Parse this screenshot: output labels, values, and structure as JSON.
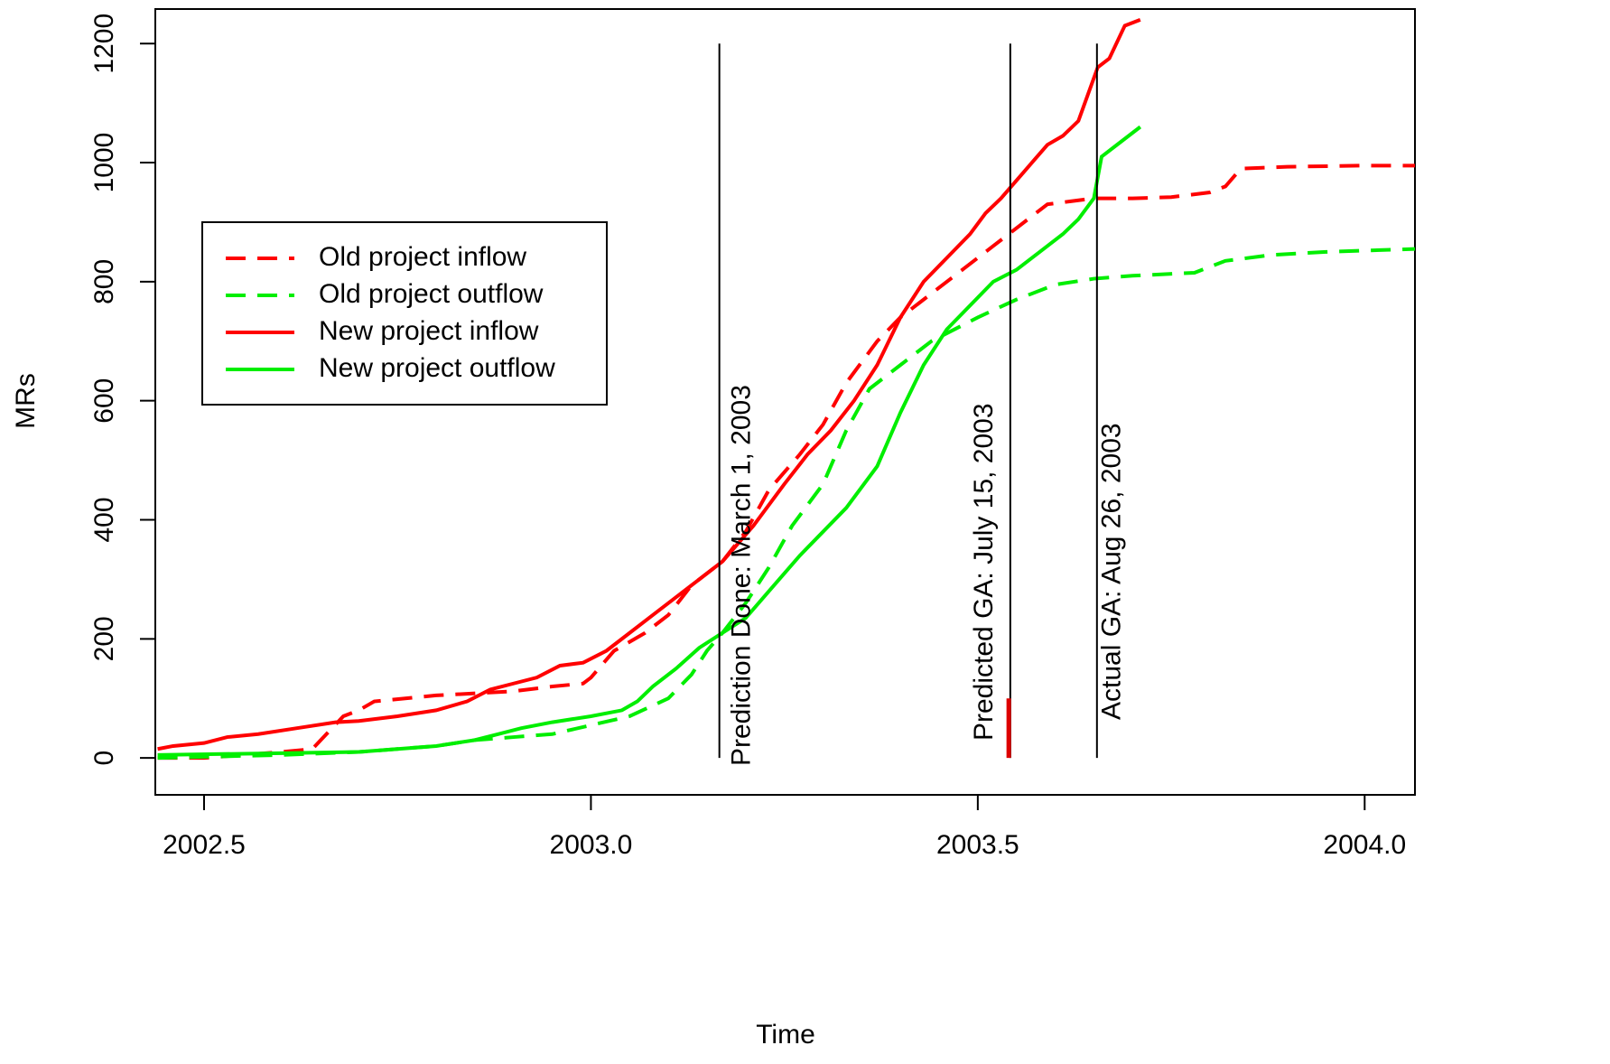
{
  "chart_data": {
    "type": "line",
    "x_label": "Time",
    "y_label": "MRs",
    "xlim": [
      2002.437,
      2004.065
    ],
    "ylim": [
      -62,
      1258
    ],
    "xticks": [
      2002.5,
      {
        "value": 2003.0,
        "label": "2003.0"
      },
      2003.5,
      {
        "value": 2004.0,
        "label": "2004.0"
      }
    ],
    "yticks": [
      0,
      200,
      400,
      600,
      800,
      1000,
      1200
    ],
    "legend_position": "upper-left",
    "series": [
      {
        "name": "Old project inflow",
        "color": "#ff0000",
        "linestyle": "dashed",
        "x": [
          2002.44,
          2002.5,
          2002.55,
          2002.6,
          2002.64,
          2002.68,
          2002.7,
          2002.72,
          2002.8,
          2002.9,
          2002.95,
          2002.99,
          2003.0,
          2003.03,
          2003.07,
          2003.1,
          2003.13,
          2003.17,
          2003.2,
          2003.23,
          2003.27,
          2003.3,
          2003.33,
          2003.37,
          2003.4,
          2003.44,
          2003.48,
          2003.52,
          2003.55,
          2003.59,
          2003.62,
          2003.65,
          2003.7,
          2003.75,
          2003.8,
          2003.82,
          2003.84,
          2003.9,
          2004.0,
          2004.065
        ],
        "values": [
          0,
          0,
          5,
          10,
          15,
          70,
          80,
          95,
          105,
          112,
          120,
          125,
          135,
          180,
          210,
          240,
          290,
          330,
          380,
          450,
          510,
          560,
          630,
          700,
          740,
          780,
          820,
          860,
          890,
          930,
          935,
          940,
          940,
          942,
          950,
          960,
          990,
          993,
          995,
          995
        ]
      },
      {
        "name": "Old project outflow",
        "color": "#00ee00",
        "linestyle": "dashed",
        "x": [
          2002.44,
          2002.6,
          2002.7,
          2002.8,
          2002.85,
          2002.9,
          2002.95,
          2003.0,
          2003.05,
          2003.1,
          2003.13,
          2003.15,
          2003.17,
          2003.2,
          2003.23,
          2003.26,
          2003.3,
          2003.33,
          2003.36,
          2003.4,
          2003.44,
          2003.5,
          2003.55,
          2003.6,
          2003.65,
          2003.7,
          2003.78,
          2003.82,
          2003.88,
          2003.95,
          2004.065
        ],
        "values": [
          0,
          5,
          10,
          20,
          30,
          35,
          40,
          55,
          70,
          100,
          140,
          180,
          210,
          260,
          320,
          390,
          460,
          550,
          620,
          660,
          700,
          740,
          770,
          795,
          805,
          810,
          815,
          835,
          845,
          850,
          855
        ]
      },
      {
        "name": "New project inflow",
        "color": "#ff0000",
        "linestyle": "solid",
        "x": [
          2002.44,
          2002.46,
          2002.5,
          2002.53,
          2002.57,
          2002.62,
          2002.67,
          2002.7,
          2002.75,
          2002.8,
          2002.84,
          2002.87,
          2002.9,
          2002.93,
          2002.96,
          2002.99,
          2003.02,
          2003.05,
          2003.08,
          2003.11,
          2003.14,
          2003.17,
          2003.21,
          2003.25,
          2003.28,
          2003.31,
          2003.34,
          2003.37,
          2003.4,
          2003.43,
          2003.46,
          2003.49,
          2003.51,
          2003.53,
          2003.56,
          2003.59,
          2003.61,
          2003.63,
          2003.655,
          2003.67,
          2003.69,
          2003.71
        ],
        "values": [
          15,
          20,
          25,
          35,
          40,
          50,
          60,
          62,
          70,
          80,
          95,
          115,
          125,
          135,
          155,
          160,
          180,
          210,
          240,
          270,
          300,
          330,
          390,
          460,
          510,
          550,
          600,
          660,
          740,
          800,
          840,
          880,
          915,
          940,
          985,
          1030,
          1045,
          1070,
          1160,
          1175,
          1230,
          1240
        ]
      },
      {
        "name": "New project outflow",
        "color": "#00ee00",
        "linestyle": "solid",
        "x": [
          2002.44,
          2002.6,
          2002.7,
          2002.8,
          2002.85,
          2002.88,
          2002.91,
          2002.95,
          2003.0,
          2003.04,
          2003.06,
          2003.08,
          2003.11,
          2003.14,
          2003.17,
          2003.2,
          2003.23,
          2003.27,
          2003.3,
          2003.33,
          2003.37,
          2003.4,
          2003.43,
          2003.46,
          2003.49,
          2003.52,
          2003.55,
          2003.58,
          2003.61,
          2003.63,
          2003.65,
          2003.66,
          2003.68,
          2003.71
        ],
        "values": [
          5,
          8,
          10,
          20,
          30,
          40,
          50,
          60,
          70,
          80,
          95,
          120,
          150,
          185,
          210,
          235,
          280,
          340,
          380,
          420,
          490,
          580,
          660,
          720,
          760,
          800,
          820,
          850,
          880,
          905,
          940,
          1010,
          1030,
          1060
        ]
      }
    ],
    "vlines": [
      {
        "x": 2003.166,
        "label": "Prediction Done: March 1, 2003"
      },
      {
        "x": 2003.542,
        "label": "Predicted GA: July 15, 2003"
      },
      {
        "x": 2003.654,
        "label": "Actual GA: Aug 26, 2003"
      }
    ],
    "vline_range": [
      0,
      1200
    ],
    "highlight": {
      "x": 2003.54,
      "range": [
        0,
        100
      ],
      "color": "#dd0000"
    }
  }
}
